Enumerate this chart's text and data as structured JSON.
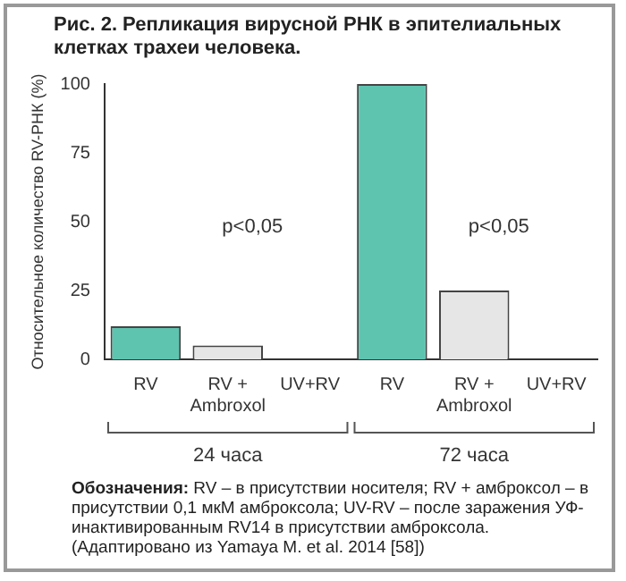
{
  "chart_data": {
    "type": "bar",
    "title": "Рис. 2. Репликация вирусной РНК в эпителиальных клетках трахеи человека.",
    "ylabel": "Относительное количество RV-РНК (%)",
    "categories": [
      "RV",
      "RV + Ambroxol",
      "UV+RV",
      "RV",
      "RV + Ambroxol",
      "UV+RV"
    ],
    "values": [
      12,
      5,
      0,
      100,
      25,
      0
    ],
    "colors": [
      "#5ec4b0",
      "#e6e6e6",
      "#e6e6e6",
      "#5ec4b0",
      "#e6e6e6",
      "#e6e6e6"
    ],
    "ylim": [
      0,
      100
    ],
    "yticks": [
      0,
      25,
      50,
      75,
      100
    ],
    "grid": false,
    "legend": false,
    "annotations": [
      "p<0,05",
      "p<0,05",
      "24 часа",
      "72 часа",
      "Обозначения: RV – в присутствии носителя; RV + амброксол – в присутствии 0,1 мкМ амброксола; UV-RV – после заражения УФ-инактивированным RV14 в присутствии амброксола. (Адаптировано из Yamaya M. et al. 2014 [58])"
    ]
  }
}
